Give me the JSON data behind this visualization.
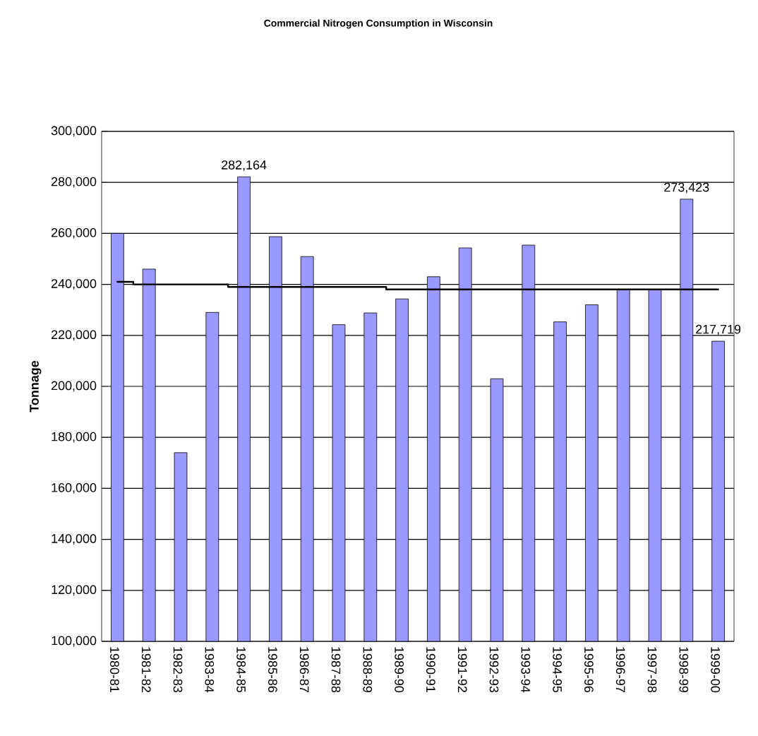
{
  "chart_data": {
    "type": "bar",
    "title": "Commercial Nitrogen Consumption in Wisconsin",
    "ylabel": "Tonnage",
    "categories": [
      "1980-81",
      "1981-82",
      "1982-83",
      "1983-84",
      "1984-85",
      "1985-86",
      "1986-87",
      "1987-88",
      "1988-89",
      "1989-90",
      "1990-91",
      "1991-92",
      "1992-93",
      "1993-94",
      "1994-95",
      "1995-96",
      "1996-97",
      "1997-98",
      "1998-99",
      "1999-00"
    ],
    "series": [
      {
        "color": "#9999ff",
        "values": [
          260000,
          246000,
          174000,
          229000,
          282164,
          258700,
          250900,
          224200,
          228800,
          234300,
          243000,
          254300,
          203000,
          255400,
          225300,
          232000,
          238000,
          238000,
          273423,
          217719
        ],
        "value_labels": [
          null,
          null,
          null,
          null,
          "282,164",
          null,
          null,
          null,
          null,
          null,
          null,
          null,
          null,
          null,
          null,
          null,
          null,
          null,
          "273,423",
          "217,719"
        ]
      },
      {
        "type": "step",
        "color": "#000000",
        "values": [
          241000,
          240000,
          240000,
          240000,
          239000,
          239000,
          239000,
          239000,
          239000,
          238000,
          238000,
          238000,
          238000,
          238000,
          238000,
          238000,
          238000,
          238000,
          238000,
          238000
        ]
      }
    ],
    "ylim": [
      100000,
      300000
    ],
    "yticks": [
      {
        "value": 100000,
        "label": "100,000"
      },
      {
        "value": 120000,
        "label": "120,000"
      },
      {
        "value": 140000,
        "label": "140,000"
      },
      {
        "value": 160000,
        "label": "160,000"
      },
      {
        "value": 180000,
        "label": "180,000"
      },
      {
        "value": 200000,
        "label": "200,000"
      },
      {
        "value": 220000,
        "label": "220,000"
      },
      {
        "value": 240000,
        "label": "240,000"
      },
      {
        "value": 260000,
        "label": "260,000"
      },
      {
        "value": 280000,
        "label": "280,000"
      },
      {
        "value": 300000,
        "label": "300,000"
      }
    ],
    "grid": "y"
  }
}
